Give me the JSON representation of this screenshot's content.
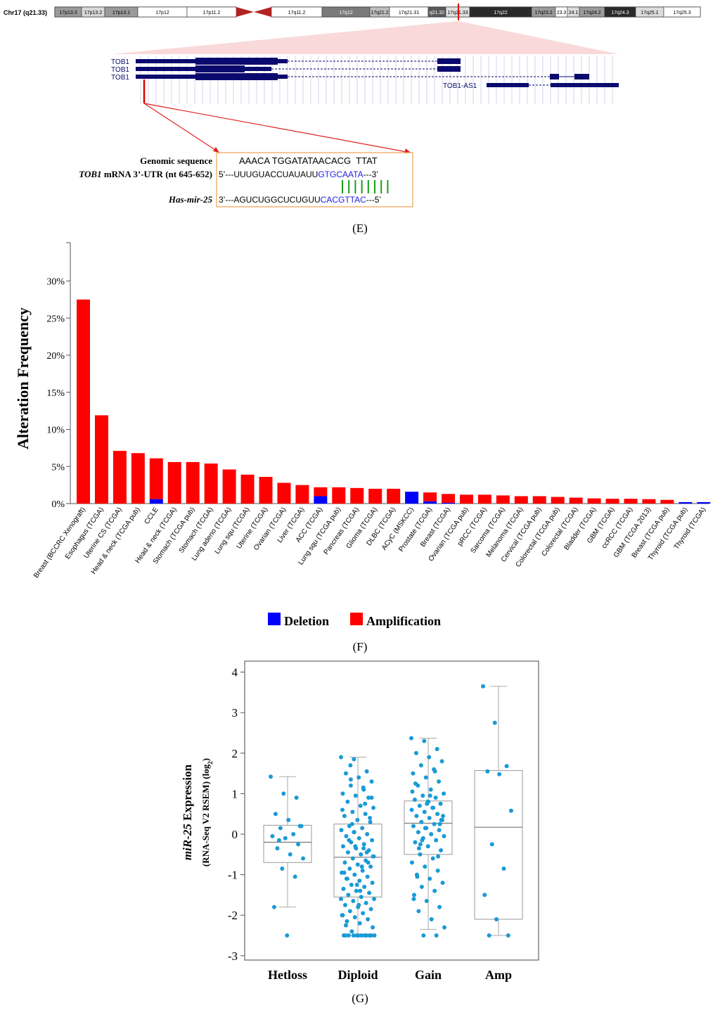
{
  "ideogram": {
    "label": "Chr17 (q21.33)",
    "bands": [
      "17p13.3",
      "17p13.2",
      "17p13.1",
      "17p12",
      "17p11.2",
      "17q11.2",
      "17q12",
      "17q21.2",
      "17q21.31",
      "q21.32",
      "17q21.33",
      "17q22",
      "17q23.2",
      "23.3",
      "24.1",
      "17q24.2",
      "17q24.3",
      "17q25.1",
      "17q25.3"
    ]
  },
  "gene_track": {
    "transcripts": [
      "TOB1",
      "TOB1",
      "TOB1"
    ],
    "antisense": "TOB1-AS1"
  },
  "alignment": {
    "genomic_label": "Genomic sequence",
    "genomic_seq": "AAACA TGGATATAACACG  TTAT",
    "mrna_label_italic": "TOB1",
    "mrna_label_rest": " mRNA 3’-UTR (nt 645-652)",
    "mrna_prefix": "5’---UUUGUACCUAUAUU",
    "mrna_seed": "GTGCAATA",
    "mrna_suffix": "---3’",
    "mir_label": "Has-mir-25",
    "mir_prefix": "3’---AGUCUGGCUCUGUU",
    "mir_seed": "CACGTTAC",
    "mir_suffix": "---5’"
  },
  "panel_labels": {
    "e": "(E)",
    "f": "(F)",
    "g": "(G)"
  },
  "colors": {
    "amplification": "#ff0000",
    "deletion": "#0000ff",
    "dots": "#1a9ad6",
    "gene": "#0a0a6e",
    "link": "#e02020"
  },
  "chart_data": [
    {
      "type": "bar",
      "title": "",
      "ylabel": "Alteration Frequency",
      "ylim": [
        0,
        35
      ],
      "yticks": [
        "0%",
        "5%",
        "10%",
        "15%",
        "20%",
        "25%",
        "30%"
      ],
      "categories": [
        "Breast (BCCRC Xenograft)",
        "Esophagus (TCGA)",
        "Uterine CS (TCGA)",
        "Head & neck (TCGA pub)",
        "CCLE",
        "Head & neck (TCGA)",
        "Stomach (TCGA pub)",
        "Stomach (TCGA)",
        "Lung adeno (TCGA)",
        "Lung squ (TCGA)",
        "Uterine (TCGA)",
        "Ovarian (TCGA)",
        "Liver (TCGA)",
        "ACC (TCGA)",
        "Lung squ (TCGA pub)",
        "Pancreas (TCGA)",
        "Glioma (TCGA)",
        "DLBC (TCGA)",
        "ACyC (MSKCC)",
        "Prostate (TCGA)",
        "Breast (TCGA)",
        "Ovarian (TCGA pub)",
        "pRCC (TCGA)",
        "Sarcoma (TCGA)",
        "Melanoma (TCGA)",
        "Cervical (TCGA pub)",
        "Colorectal (TCGA pub)",
        "Colorectal (TCGA)",
        "Bladder (TCGA)",
        "GBM (TCGA)",
        "ccRCC (TCGA)",
        "GBM (TCGA 2013)",
        "Breast (TCGA pub)",
        "Thyroid (TCGA pub)",
        "Thyroid (TCGA)"
      ],
      "series": [
        {
          "name": "Deletion",
          "values": [
            0,
            0,
            0,
            0,
            0.6,
            0,
            0,
            0,
            0,
            0,
            0,
            0,
            0,
            1.0,
            0,
            0,
            0,
            0,
            1.6,
            0.3,
            0.1,
            0,
            0,
            0,
            0,
            0,
            0,
            0,
            0,
            0,
            0,
            0,
            0,
            0.2,
            0.2
          ]
        },
        {
          "name": "Amplification",
          "values": [
            27.5,
            11.9,
            7.1,
            6.8,
            5.5,
            5.6,
            5.6,
            5.4,
            4.6,
            3.9,
            3.6,
            2.8,
            2.5,
            1.2,
            2.2,
            2.1,
            2.0,
            2.0,
            0,
            1.2,
            1.2,
            1.2,
            1.2,
            1.1,
            1.0,
            1.0,
            0.9,
            0.8,
            0.7,
            0.65,
            0.65,
            0.6,
            0.5,
            0,
            0
          ]
        }
      ],
      "legend": [
        "Deletion",
        "Amplification"
      ],
      "legend_position": "bottom"
    },
    {
      "type": "box",
      "ylabel_italic": "miR-25",
      "ylabel_rest": " Expression",
      "ylabel_sub": "(RNA-Seq V2 RSEM) (log",
      "ylabel_sub_2": "2",
      "ylabel_sub_end": ")",
      "ylim": [
        -3,
        4
      ],
      "yticks": [
        "-3",
        "-2",
        "-1",
        "0",
        "1",
        "2",
        "3",
        "4"
      ],
      "categories": [
        "Hetloss",
        "Diploid",
        "Gain",
        "Amp"
      ],
      "boxes": [
        {
          "q1": -0.7,
          "median": -0.2,
          "q3": 0.22,
          "whisker_low": -1.8,
          "whisker_high": 1.42
        },
        {
          "q1": -1.55,
          "median": -0.57,
          "q3": 0.25,
          "whisker_low": -2.5,
          "whisker_high": 1.9
        },
        {
          "q1": -0.5,
          "median": 0.27,
          "q3": 0.82,
          "whisker_low": -2.35,
          "whisker_high": 2.37
        },
        {
          "q1": -2.1,
          "median": 0.17,
          "q3": 1.57,
          "whisker_low": -2.5,
          "whisker_high": 3.65
        }
      ],
      "points": [
        {
          "group": 0,
          "values": [
            1.42,
            1.0,
            0.9,
            0.5,
            0.35,
            0.2,
            0.15,
            0.0,
            -0.05,
            -0.1,
            -0.25,
            -0.35,
            -0.5,
            -0.6,
            -0.85,
            -1.05,
            -1.8,
            -2.5,
            0.2,
            -0.15
          ]
        },
        {
          "group": 1,
          "values": [
            1.9,
            1.85,
            1.55,
            1.5,
            1.4,
            1.3,
            1.2,
            1.1,
            1.0,
            0.95,
            0.9,
            0.8,
            0.7,
            0.65,
            0.55,
            0.5,
            0.45,
            0.35,
            0.3,
            0.2,
            0.15,
            0.1,
            0.05,
            0.0,
            -0.05,
            -0.1,
            -0.15,
            -0.2,
            -0.25,
            -0.3,
            -0.35,
            -0.4,
            -0.45,
            -0.5,
            -0.55,
            -0.6,
            -0.65,
            -0.7,
            -0.75,
            -0.8,
            -0.85,
            -0.9,
            -0.95,
            -1.0,
            -1.05,
            -1.1,
            -1.15,
            -1.2,
            -1.25,
            -1.3,
            -1.35,
            -1.4,
            -1.45,
            -1.5,
            -1.55,
            -1.6,
            -1.65,
            -1.7,
            -1.75,
            -1.8,
            -1.85,
            -1.9,
            -1.95,
            -2.0,
            -2.05,
            -2.1,
            -2.15,
            -2.2,
            -2.3,
            -2.4,
            -2.5,
            -2.5,
            -2.5,
            -2.5,
            -2.5,
            -2.5,
            -2.5,
            -2.5,
            -2.5,
            -2.5,
            -2.5,
            -2.5,
            1.7,
            1.15,
            0.6,
            -0.3,
            -0.7,
            -1.1,
            -1.4,
            -0.55,
            0.25,
            0.75,
            -0.95,
            -1.25,
            0.4,
            -0.15,
            -0.8,
            -1.6,
            0.05,
            -0.45,
            -2.25,
            -1.75,
            0.9,
            1.35,
            -0.35,
            -2.0
          ]
        },
        {
          "group": 2,
          "values": [
            2.37,
            2.3,
            2.1,
            2.0,
            1.9,
            1.8,
            1.7,
            1.6,
            1.5,
            1.4,
            1.3,
            1.2,
            1.1,
            1.0,
            0.95,
            0.9,
            0.85,
            0.8,
            0.75,
            0.7,
            0.65,
            0.6,
            0.55,
            0.5,
            0.45,
            0.4,
            0.35,
            0.3,
            0.25,
            0.2,
            0.15,
            0.1,
            0.05,
            0.0,
            -0.05,
            -0.1,
            -0.15,
            -0.2,
            -0.3,
            -0.4,
            -0.5,
            -0.6,
            -0.7,
            -0.8,
            -0.9,
            -1.0,
            -1.1,
            -1.2,
            -1.3,
            -1.4,
            -1.6,
            -1.65,
            -1.8,
            -1.9,
            -2.1,
            -2.3,
            -2.5,
            -2.5,
            1.25,
            0.8,
            0.35,
            -0.25,
            0.65,
            1.05,
            0.15,
            -0.55,
            -1.05,
            0.95,
            0.45,
            -0.15,
            1.55,
            -1.5,
            0.75,
            0.25,
            -0.35
          ]
        },
        {
          "group": 3,
          "values": [
            3.65,
            2.75,
            1.68,
            1.55,
            1.48,
            0.58,
            -0.25,
            -0.85,
            -1.5,
            -2.1,
            -2.5,
            -2.5
          ]
        }
      ]
    }
  ]
}
